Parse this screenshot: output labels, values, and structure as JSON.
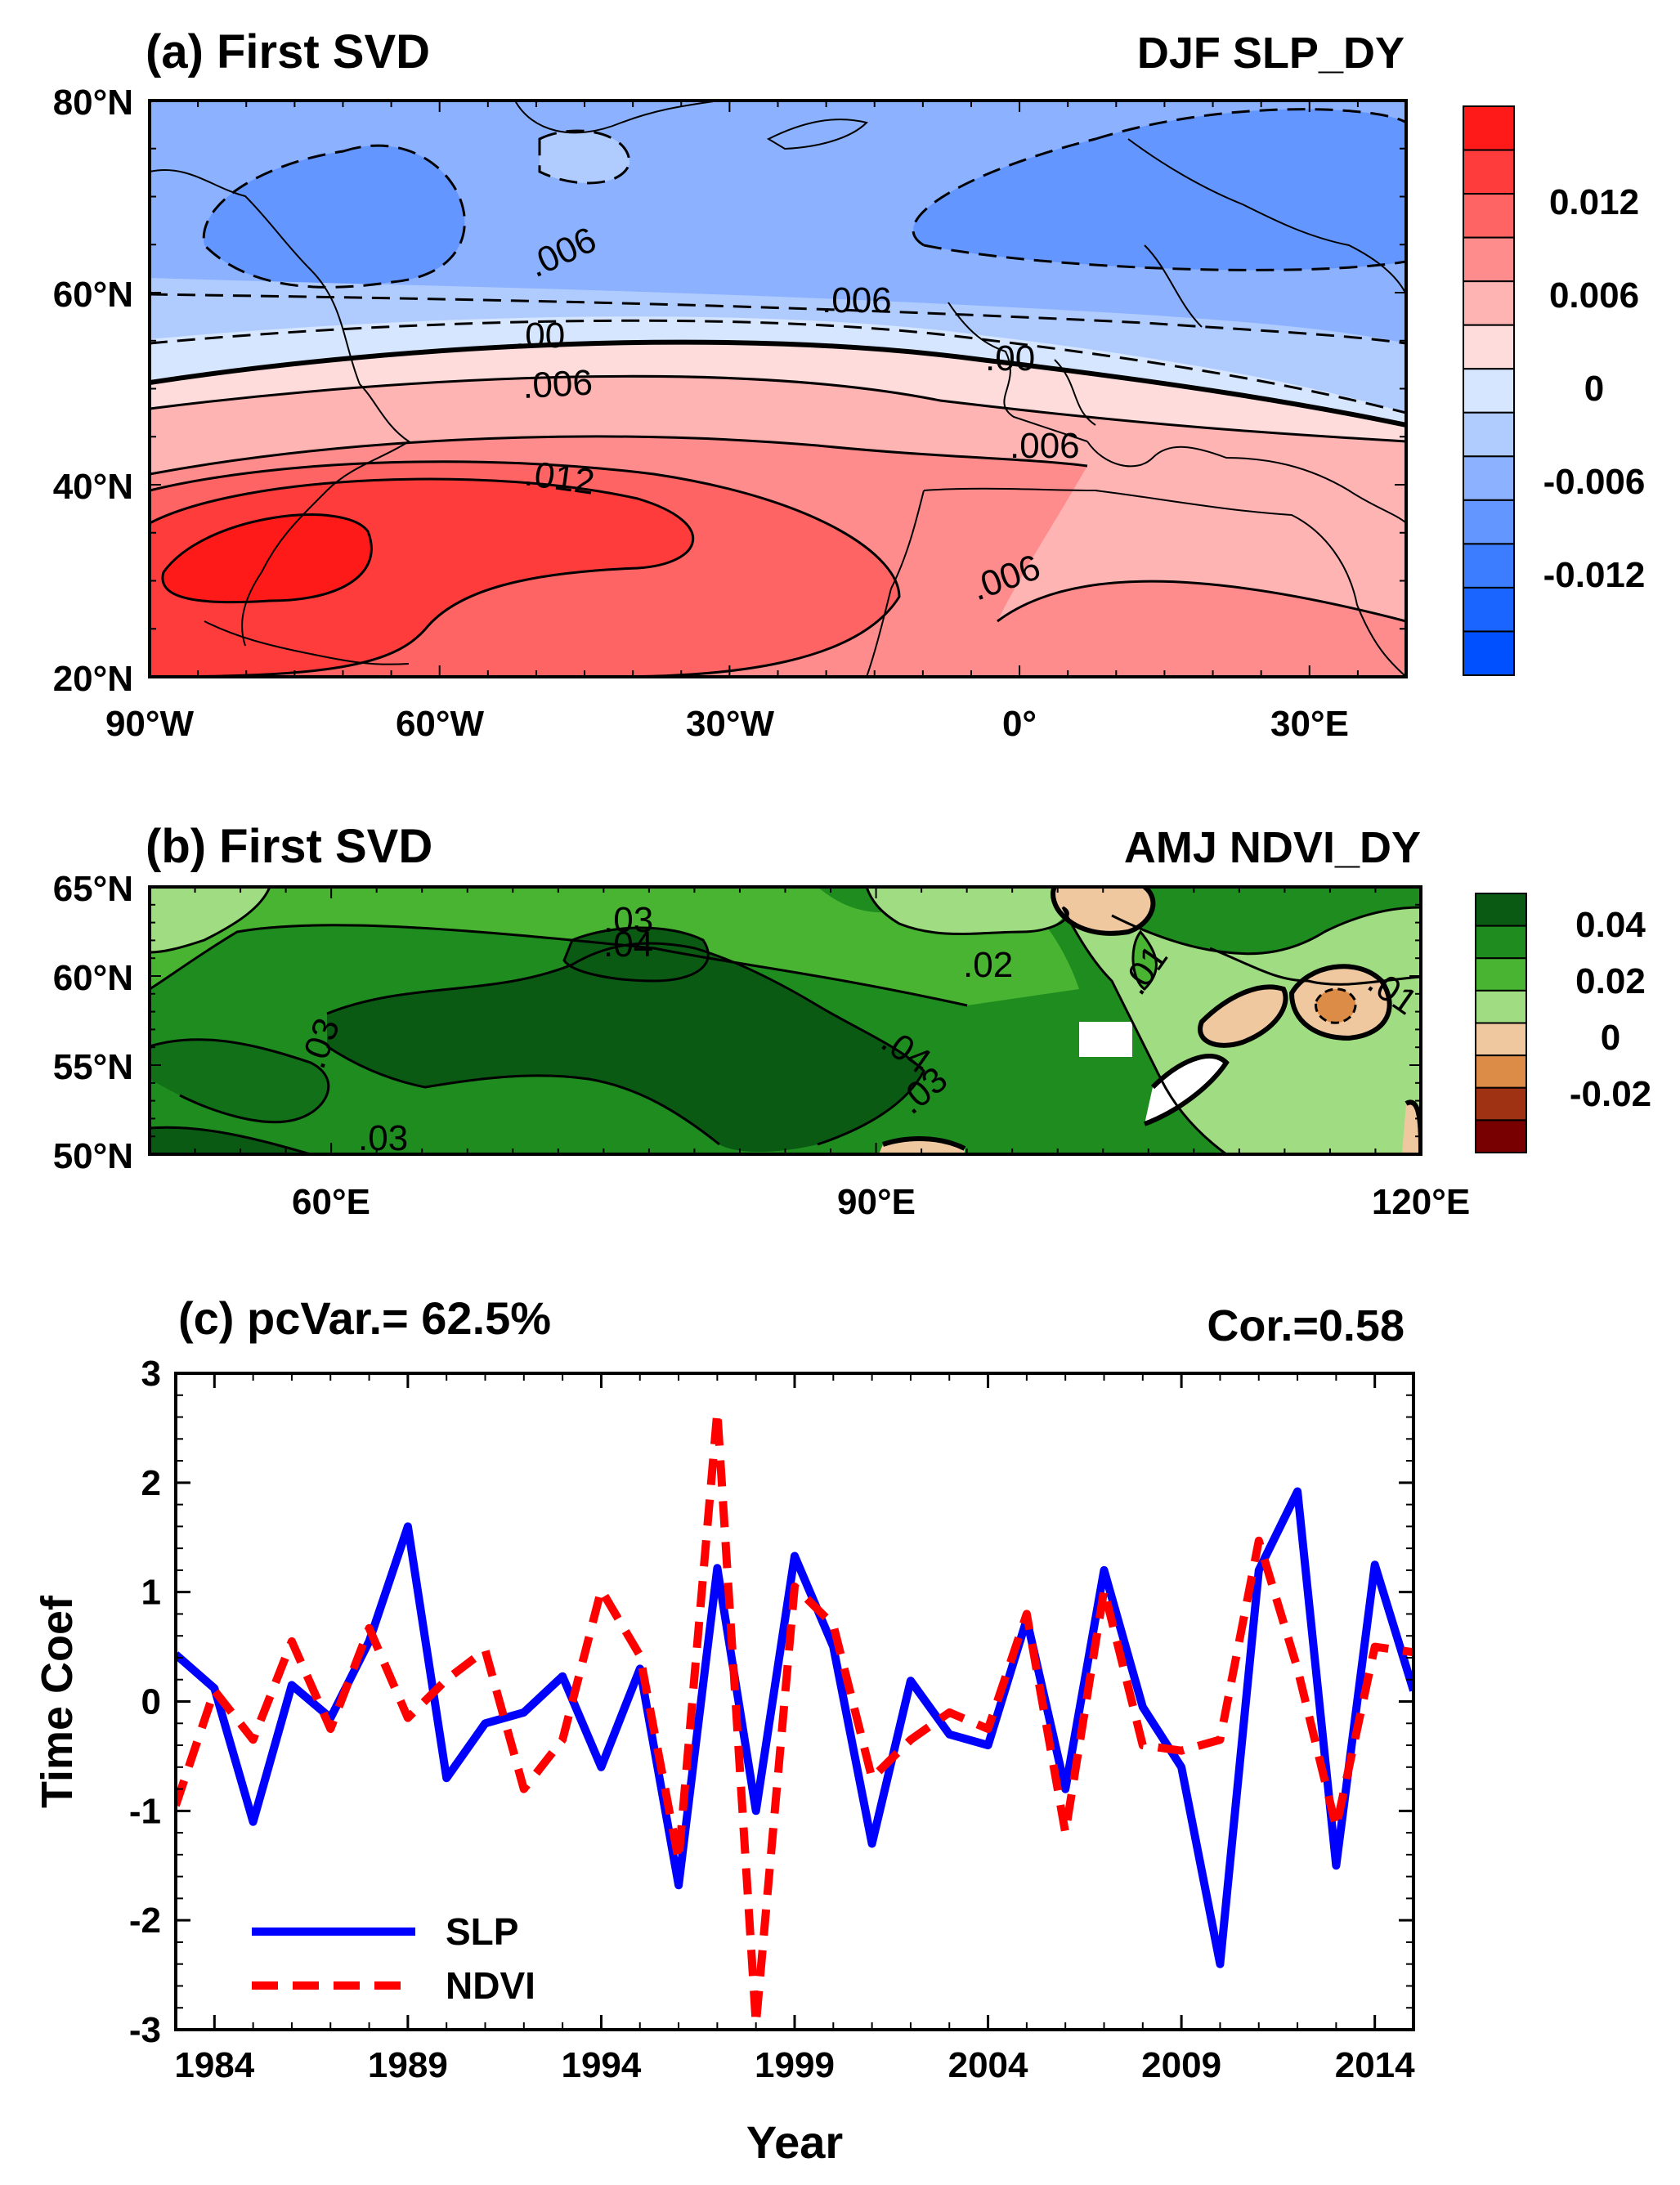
{
  "panel_a": {
    "title_left": "(a) First SVD",
    "title_right": "DJF SLP_DY",
    "lat_ticks": [
      "80°N",
      "60°N",
      "40°N",
      "20°N"
    ],
    "lon_ticks": [
      "90°W",
      "60°W",
      "30°W",
      "0°",
      "30°E"
    ],
    "colorbar": {
      "labels": [
        "0.012",
        "0.006",
        "0",
        "-0.006",
        "-0.012"
      ],
      "colors": [
        "#ff1a1a",
        "#ff3c3c",
        "#ff6464",
        "#ff8c8c",
        "#ffb4b4",
        "#ffdcdc",
        "#d6e6ff",
        "#b0ccff",
        "#8cb2ff",
        "#6496ff",
        "#3c7cff",
        "#1a64ff",
        "#0050ff"
      ]
    },
    "contour_labels": [
      ".006",
      ".006",
      ".00",
      ".00",
      ".006",
      ".012",
      ".006",
      ".006"
    ]
  },
  "panel_b": {
    "title_left": "(b) First SVD",
    "title_right": "AMJ NDVI_DY",
    "lat_ticks": [
      "65°N",
      "60°N",
      "55°N",
      "50°N"
    ],
    "lon_ticks": [
      "60°E",
      "90°E",
      "120°E"
    ],
    "colorbar": {
      "labels": [
        "0.04",
        "0.02",
        "0",
        "-0.02"
      ],
      "colors": [
        "#0a5a14",
        "#1e8c1e",
        "#48b432",
        "#a0dc82",
        "#f0c8a0",
        "#dc8c46",
        "#a03214",
        "#780000"
      ]
    },
    "contour_labels": [
      ".03",
      ".04",
      ".02",
      ".03",
      ".04",
      ".03",
      ".03",
      ".01",
      ".01"
    ]
  },
  "panel_c": {
    "title_left": "(c) pcVar.= 62.5%",
    "title_right": "Cor.=0.58",
    "ylabel": "Time Coef",
    "xlabel": "Year",
    "legend": [
      "SLP",
      "NDVI"
    ]
  },
  "chart_data": [
    {
      "type": "heatmap",
      "title": "(a) First SVD",
      "subtitle": "DJF SLP_DY",
      "xlim": [
        -90,
        40
      ],
      "ylim": [
        20,
        80
      ],
      "x_ticks": [
        "90°W",
        "60°W",
        "30°W",
        "0°",
        "30°E"
      ],
      "y_ticks": [
        "80°N",
        "60°N",
        "40°N",
        "20°N"
      ],
      "colorbar_labels": [
        0.012,
        0.006,
        0,
        -0.006,
        -0.012
      ],
      "pattern": "negative values north of ~55°N, positive values to the south with maximum near 30°N, 80°W"
    },
    {
      "type": "heatmap",
      "title": "(b) First SVD",
      "subtitle": "AMJ NDVI_DY",
      "xlim": [
        50,
        120
      ],
      "ylim": [
        50,
        65
      ],
      "x_ticks": [
        "60°E",
        "90°E",
        "120°E"
      ],
      "y_ticks": [
        "65°N",
        "60°N",
        "55°N",
        "50°N"
      ],
      "colorbar_labels": [
        0.04,
        0.02,
        0,
        -0.02
      ],
      "pattern": "positive values over most of the domain with maximum near 75–90°E, negative patches east of 105°E"
    },
    {
      "type": "line",
      "title": "(c) pcVar.= 62.5%",
      "subtitle": "Cor.=0.58",
      "xlabel": "Year",
      "ylabel": "Time Coef",
      "xlim": [
        1983,
        2015
      ],
      "ylim": [
        -3,
        3
      ],
      "x_ticks": [
        1984,
        1989,
        1994,
        1999,
        2004,
        2009,
        2014
      ],
      "y_ticks": [
        3,
        2,
        1,
        0,
        -1,
        -2,
        -3
      ],
      "x": [
        1983,
        1984,
        1985,
        1986,
        1987,
        1988,
        1989,
        1990,
        1991,
        1992,
        1993,
        1994,
        1995,
        1996,
        1997,
        1998,
        1999,
        2000,
        2001,
        2002,
        2003,
        2004,
        2005,
        2006,
        2007,
        2008,
        2009,
        2010,
        2011,
        2012,
        2013,
        2014,
        2015
      ],
      "series": [
        {
          "name": "SLP",
          "color": "#0000ff",
          "style": "solid",
          "values": [
            0.43,
            0.12,
            -1.1,
            0.15,
            -0.15,
            0.55,
            1.6,
            -0.7,
            -0.2,
            -0.1,
            0.23,
            -0.6,
            0.3,
            -1.68,
            1.22,
            -1.0,
            1.33,
            0.5,
            -1.3,
            0.19,
            -0.3,
            -0.4,
            0.75,
            -0.8,
            1.2,
            -0.05,
            -0.6,
            -2.4,
            1.2,
            1.92,
            -1.5,
            1.25,
            0.1
          ]
        },
        {
          "name": "NDVI",
          "color": "#ff0000",
          "style": "dashed",
          "values": [
            -0.95,
            0.1,
            -0.35,
            0.55,
            -0.25,
            0.67,
            -0.15,
            0.2,
            0.47,
            -0.8,
            -0.35,
            1.02,
            0.42,
            -1.45,
            2.65,
            -2.95,
            1.05,
            0.7,
            -0.7,
            -0.35,
            -0.1,
            -0.25,
            0.8,
            -1.2,
            1.02,
            -0.4,
            -0.45,
            -0.35,
            1.47,
            0.3,
            -1.15,
            0.5,
            0.45
          ]
        }
      ]
    }
  ]
}
